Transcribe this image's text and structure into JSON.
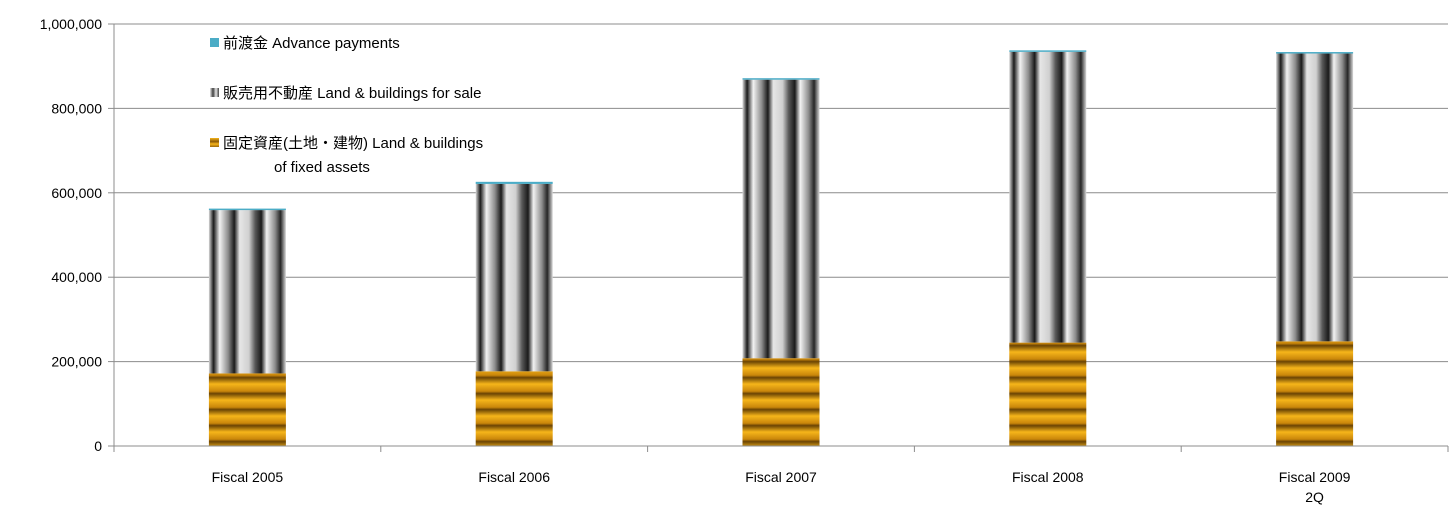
{
  "chart_data": {
    "type": "bar",
    "stacked": true,
    "categories": [
      [
        "Fiscal 2005"
      ],
      [
        "Fiscal 2006"
      ],
      [
        "Fiscal 2007"
      ],
      [
        "Fiscal 2008"
      ],
      [
        "Fiscal 2009",
        "2Q"
      ]
    ],
    "series": [
      {
        "name": "固定資産(土地・建物) Land & buildings of fixed assets",
        "legend_lines": [
          "固定資産(土地・建物) Land & buildings",
          "of fixed assets"
        ],
        "values": [
          172000,
          177000,
          208000,
          245000,
          248000
        ],
        "color": "#d4920a",
        "pattern": "horizontal-stripes"
      },
      {
        "name": "販売用不動産 Land & buildings for sale",
        "legend_lines": [
          "販売用不動産 Land & buildings for sale"
        ],
        "values": [
          387000,
          444000,
          660000,
          689000,
          682000
        ],
        "color": "#a6a6a6",
        "pattern": "vertical-cylinders"
      },
      {
        "name": "前渡金 Advance payments",
        "legend_lines": [
          "前渡金 Advance payments"
        ],
        "values": [
          2000,
          5000,
          2000,
          3000,
          2000
        ],
        "color": "#4bacc6",
        "pattern": "solid"
      }
    ],
    "ylim": [
      0,
      1000000
    ],
    "yticks": [
      "0",
      "200,000",
      "400,000",
      "600,000",
      "800,000",
      "1,000,000"
    ],
    "grid": true,
    "legend_position": "top-left"
  }
}
